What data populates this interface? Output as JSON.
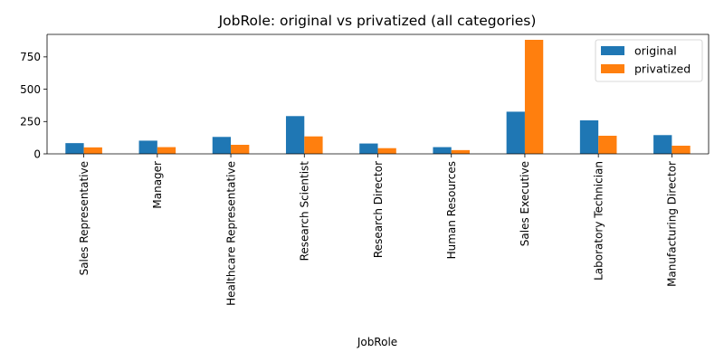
{
  "chart_data": {
    "type": "bar",
    "title": "JobRole: original vs privatized (all categories)",
    "xlabel": "JobRole",
    "ylabel": "",
    "ylim": [
      0,
      924
    ],
    "yticks": [
      0,
      250,
      500,
      750
    ],
    "categories": [
      "Sales Representative",
      "Manager",
      "Healthcare Representative",
      "Research Scientist",
      "Research Director",
      "Human Resources",
      "Sales Executive",
      "Laboratory Technician",
      "Manufacturing Director"
    ],
    "series": [
      {
        "name": "original",
        "color": "#1f77b4",
        "values": [
          83,
          102,
          131,
          292,
          80,
          52,
          326,
          259,
          145
        ]
      },
      {
        "name": "privatized",
        "color": "#ff7f0e",
        "values": [
          50,
          52,
          70,
          135,
          44,
          29,
          882,
          140,
          63
        ]
      }
    ],
    "grid": false,
    "legend_position": "top-right"
  }
}
